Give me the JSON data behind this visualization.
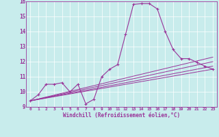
{
  "xlabel": "Windchill (Refroidissement éolien,°C)",
  "background_color": "#c8ecec",
  "line_color": "#993399",
  "grid_color": "#ffffff",
  "xlim": [
    -0.5,
    23.5
  ],
  "ylim": [
    9,
    16
  ],
  "xticks": [
    0,
    1,
    2,
    3,
    4,
    5,
    6,
    7,
    8,
    9,
    10,
    11,
    12,
    13,
    14,
    15,
    16,
    17,
    18,
    19,
    20,
    21,
    22,
    23
  ],
  "yticks": [
    9,
    10,
    11,
    12,
    13,
    14,
    15,
    16
  ],
  "main_x": [
    0,
    1,
    2,
    3,
    4,
    5,
    6,
    7,
    8,
    9,
    10,
    11,
    12,
    13,
    14,
    15,
    16,
    17,
    18,
    19,
    20,
    21,
    22,
    23
  ],
  "main_y": [
    9.4,
    9.8,
    10.5,
    10.5,
    10.6,
    10.0,
    10.5,
    9.2,
    9.5,
    11.0,
    11.5,
    11.8,
    13.8,
    15.8,
    15.85,
    15.85,
    15.5,
    14.0,
    12.8,
    12.2,
    12.2,
    11.95,
    11.7,
    11.5
  ],
  "fan_lines": [
    {
      "x": [
        0,
        23
      ],
      "y": [
        9.4,
        11.5
      ]
    },
    {
      "x": [
        0,
        23
      ],
      "y": [
        9.4,
        11.7
      ]
    },
    {
      "x": [
        0,
        23
      ],
      "y": [
        9.4,
        12.0
      ]
    },
    {
      "x": [
        0,
        23
      ],
      "y": [
        9.4,
        12.3
      ]
    }
  ]
}
